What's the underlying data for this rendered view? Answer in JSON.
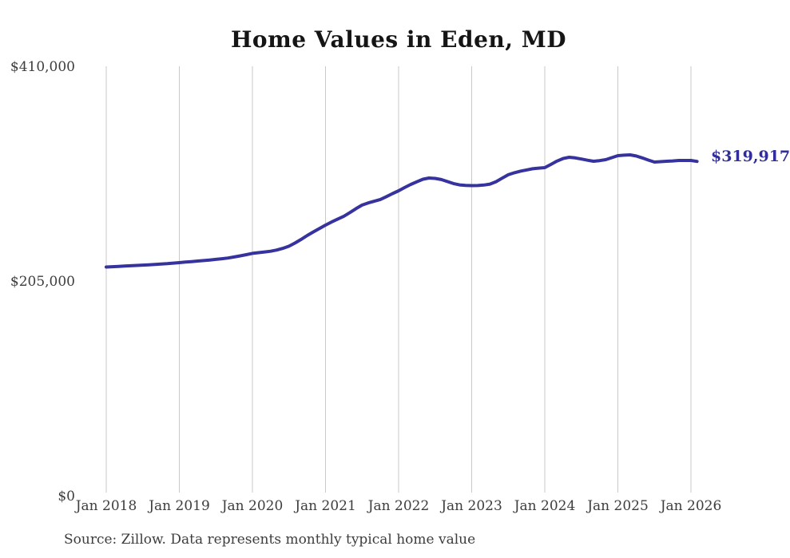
{
  "chart_data": {
    "type": "line",
    "title": "Home Values in Eden, MD",
    "xlabel": "",
    "ylabel": "",
    "ylim": [
      0,
      410000
    ],
    "x_unit": "month",
    "first_month": "2018-01",
    "last_month": "2026-02",
    "x_tick_labels": [
      "Jan 2018",
      "Jan 2019",
      "Jan 2020",
      "Jan 2021",
      "Jan 2022",
      "Jan 2023",
      "Jan 2024",
      "Jan 2025",
      "Jan 2026"
    ],
    "y_tick_labels": [
      "$410,000",
      "$205,000",
      "$0"
    ],
    "grid": "vertical-only",
    "legend_position": "none",
    "line_color": "#37339e",
    "grid_color": "#c9c9c9",
    "end_label": "$319,917",
    "end_value": 319917,
    "series": [
      {
        "name": "Monthly typical home value",
        "values": [
          219100,
          219400,
          219700,
          220000,
          220300,
          220600,
          220900,
          221200,
          221500,
          221900,
          222300,
          222800,
          223300,
          223800,
          224300,
          224800,
          225300,
          225800,
          226400,
          227000,
          227700,
          228700,
          229800,
          230900,
          232100,
          232800,
          233500,
          234200,
          235300,
          236900,
          239000,
          242000,
          245500,
          249200,
          252600,
          255900,
          259100,
          262100,
          264900,
          267600,
          271100,
          274800,
          278200,
          280300,
          281900,
          283600,
          286300,
          289200,
          291900,
          295000,
          298000,
          300500,
          302900,
          304100,
          303700,
          302600,
          300700,
          298800,
          297500,
          297000,
          296800,
          296900,
          297400,
          298300,
          300600,
          303900,
          307200,
          309100,
          310600,
          311800,
          312900,
          313500,
          314000,
          317000,
          320200,
          322700,
          323900,
          323300,
          322200,
          321100,
          320100,
          320700,
          321600,
          323500,
          325400,
          325900,
          326200,
          325100,
          323300,
          321200,
          319300,
          319700,
          320100,
          320400,
          320800,
          320800,
          320800,
          319917
        ]
      }
    ]
  },
  "source_note": "Source: Zillow. Data represents monthly typical home value"
}
